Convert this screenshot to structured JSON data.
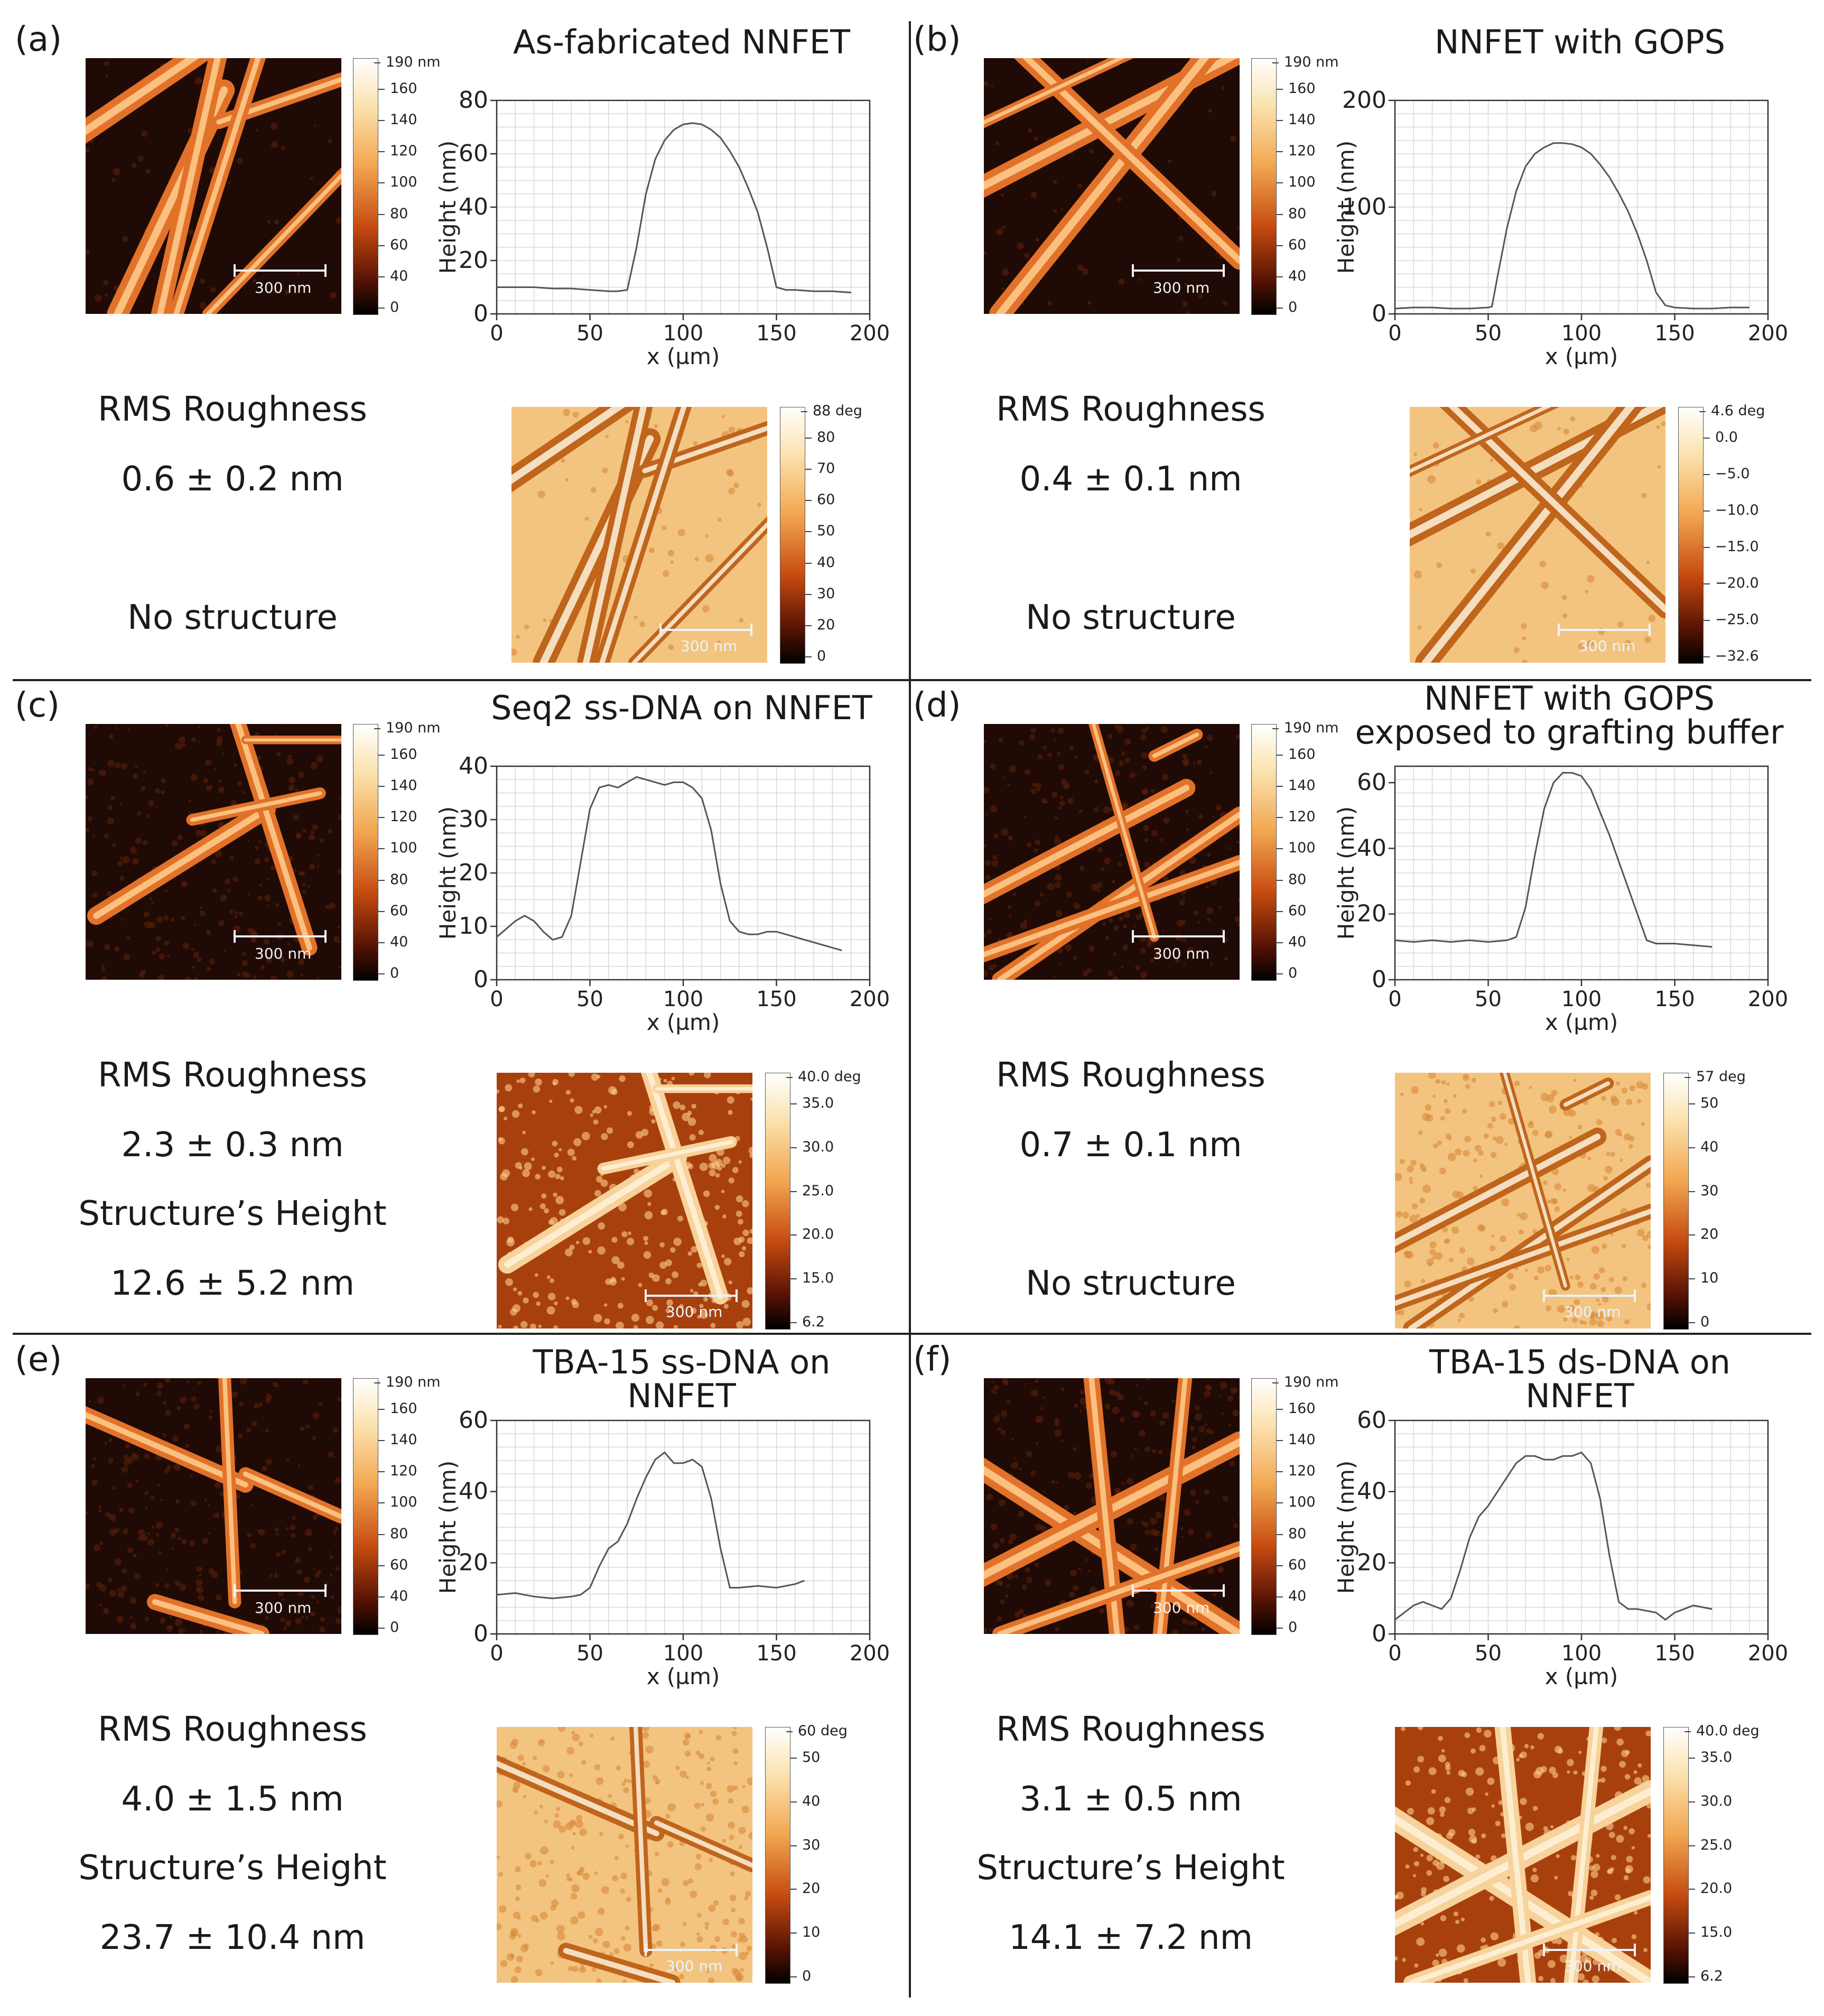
{
  "figure": {
    "panels": [
      {
        "label": "(a)",
        "title": "As-fabricated NNFET",
        "height_colorbar_top": "190 nm",
        "height_colorbar_ticks": [
          "160",
          "140",
          "120",
          "100",
          "80",
          "60",
          "40",
          "0"
        ],
        "scale_bar": "300 nm",
        "phase_colorbar_top": "88 deg",
        "phase_colorbar_ticks": [
          "80",
          "70",
          "60",
          "50",
          "40",
          "30",
          "20",
          "0"
        ],
        "phase_scale_bar": "300 nm",
        "rms_label": "RMS Roughness",
        "rms_value": "0.6 ± 0.2 nm",
        "structure_line1": "No structure",
        "structure_line2": ""
      },
      {
        "label": "(b)",
        "title": "NNFET with GOPS",
        "height_colorbar_top": "190 nm",
        "height_colorbar_ticks": [
          "160",
          "140",
          "120",
          "100",
          "80",
          "60",
          "40",
          "0"
        ],
        "scale_bar": "300 nm",
        "phase_colorbar_top": "4.6 deg",
        "phase_colorbar_ticks": [
          "0.0",
          "−5.0",
          "−10.0",
          "−15.0",
          "−20.0",
          "−25.0",
          "−32.6"
        ],
        "phase_scale_bar": "300 nm",
        "rms_label": "RMS Roughness",
        "rms_value": "0.4 ± 0.1 nm",
        "structure_line1": "No structure",
        "structure_line2": ""
      },
      {
        "label": "(c)",
        "title": "Seq2 ss-DNA on NNFET",
        "height_colorbar_top": "190 nm",
        "height_colorbar_ticks": [
          "160",
          "140",
          "120",
          "100",
          "80",
          "60",
          "40",
          "0"
        ],
        "scale_bar": "300 nm",
        "phase_colorbar_top": "40.0 deg",
        "phase_colorbar_ticks": [
          "35.0",
          "30.0",
          "25.0",
          "20.0",
          "15.0",
          "6.2"
        ],
        "phase_scale_bar": "300 nm",
        "rms_label": "RMS Roughness",
        "rms_value": "2.3 ± 0.3 nm",
        "structure_line1": "Structure’s Height",
        "structure_line2": "12.6 ± 5.2 nm"
      },
      {
        "label": "(d)",
        "title": "NNFET with GOPS\nexposed to grafting buffer",
        "height_colorbar_top": "190 nm",
        "height_colorbar_ticks": [
          "160",
          "140",
          "120",
          "100",
          "80",
          "60",
          "40",
          "0"
        ],
        "scale_bar": "300 nm",
        "phase_colorbar_top": "57 deg",
        "phase_colorbar_ticks": [
          "50",
          "40",
          "30",
          "20",
          "10",
          "0"
        ],
        "phase_scale_bar": "300 nm",
        "rms_label": "RMS Roughness",
        "rms_value": "0.7 ± 0.1 nm",
        "structure_line1": "No structure",
        "structure_line2": ""
      },
      {
        "label": "(e)",
        "title": "TBA-15 ss-DNA on NNFET",
        "height_colorbar_top": "190 nm",
        "height_colorbar_ticks": [
          "160",
          "140",
          "120",
          "100",
          "80",
          "60",
          "40",
          "0"
        ],
        "scale_bar": "300 nm",
        "phase_colorbar_top": "60 deg",
        "phase_colorbar_ticks": [
          "50",
          "40",
          "30",
          "20",
          "10",
          "0"
        ],
        "phase_scale_bar": "300 nm",
        "rms_label": "RMS Roughness",
        "rms_value": "4.0 ± 1.5 nm",
        "structure_line1": "Structure’s Height",
        "structure_line2": "23.7 ± 10.4 nm"
      },
      {
        "label": "(f)",
        "title": "TBA-15 ds-DNA on NNFET",
        "height_colorbar_top": "190 nm",
        "height_colorbar_ticks": [
          "160",
          "140",
          "120",
          "100",
          "80",
          "60",
          "40",
          "0"
        ],
        "scale_bar": "300 nm",
        "phase_colorbar_top": "40.0 deg",
        "phase_colorbar_ticks": [
          "35.0",
          "30.0",
          "25.0",
          "20.0",
          "15.0",
          "6.2"
        ],
        "phase_scale_bar": "300 nm",
        "rms_label": "RMS Roughness",
        "rms_value": "3.1 ± 0.5 nm",
        "structure_line1": "Structure’s Height",
        "structure_line2": "14.1 ± 7.2 nm"
      }
    ]
  },
  "chart_data": [
    {
      "type": "line",
      "panel": "(a)",
      "xlabel": "x (µm)",
      "ylabel": "Height (nm)",
      "xlim": [
        0,
        200
      ],
      "ylim": [
        0,
        80
      ],
      "xticks": [
        0,
        50,
        100,
        150,
        200
      ],
      "yticks": [
        0,
        20,
        40,
        60,
        80
      ],
      "grid": true,
      "x": [
        0,
        10,
        20,
        30,
        40,
        50,
        60,
        65,
        70,
        75,
        80,
        85,
        90,
        95,
        100,
        105,
        110,
        115,
        120,
        125,
        130,
        135,
        140,
        145,
        150,
        155,
        160,
        170,
        180,
        190
      ],
      "y": [
        10,
        10,
        10,
        9.5,
        9.5,
        9,
        8.5,
        8.5,
        9,
        25,
        45,
        58,
        65,
        69,
        71,
        71.5,
        71,
        69,
        66,
        61,
        55,
        47,
        38,
        25,
        10,
        9,
        9,
        8.5,
        8.5,
        8
      ]
    },
    {
      "type": "line",
      "panel": "(b)",
      "xlabel": "x (µm)",
      "ylabel": "Height (nm)",
      "xlim": [
        0,
        200
      ],
      "ylim": [
        0,
        200
      ],
      "xticks": [
        0,
        50,
        100,
        150,
        200
      ],
      "yticks": [
        0,
        100,
        200
      ],
      "grid": true,
      "x": [
        0,
        10,
        20,
        30,
        40,
        50,
        52,
        55,
        60,
        65,
        70,
        75,
        80,
        85,
        90,
        95,
        100,
        105,
        110,
        115,
        120,
        125,
        130,
        135,
        140,
        145,
        150,
        160,
        170,
        180,
        190
      ],
      "y": [
        5,
        6,
        6,
        5,
        5,
        6,
        7,
        35,
        80,
        115,
        138,
        150,
        156,
        160,
        160,
        159,
        156,
        150,
        140,
        128,
        113,
        96,
        75,
        50,
        20,
        8,
        6,
        5,
        5,
        6,
        6
      ]
    },
    {
      "type": "line",
      "panel": "(c)",
      "xlabel": "x (µm)",
      "ylabel": "Height (nm)",
      "xlim": [
        0,
        200
      ],
      "ylim": [
        0,
        40
      ],
      "xticks": [
        0,
        50,
        100,
        150,
        200
      ],
      "yticks": [
        0,
        10,
        20,
        30,
        40
      ],
      "grid": true,
      "x": [
        0,
        5,
        10,
        15,
        20,
        25,
        30,
        35,
        40,
        45,
        50,
        55,
        60,
        65,
        70,
        75,
        80,
        85,
        90,
        95,
        100,
        105,
        110,
        115,
        120,
        125,
        130,
        135,
        140,
        145,
        150,
        155,
        160,
        165,
        170,
        175,
        180,
        185
      ],
      "y": [
        8,
        9.5,
        11,
        12,
        11,
        9,
        7.5,
        8,
        12,
        22,
        32,
        36,
        36.5,
        36,
        37,
        38,
        37.5,
        37,
        36.5,
        37,
        37,
        36,
        34,
        28,
        18,
        11,
        9,
        8.5,
        8.5,
        9,
        9,
        8.5,
        8,
        7.5,
        7,
        6.5,
        6,
        5.5
      ]
    },
    {
      "type": "line",
      "panel": "(d)",
      "xlabel": "x (µm)",
      "ylabel": "Height (nm)",
      "xlim": [
        0,
        200
      ],
      "ylim": [
        0,
        65
      ],
      "xticks": [
        0,
        50,
        100,
        150,
        200
      ],
      "yticks": [
        0,
        20,
        40,
        60
      ],
      "grid": true,
      "x": [
        0,
        10,
        20,
        30,
        40,
        50,
        60,
        65,
        70,
        75,
        80,
        85,
        90,
        95,
        100,
        105,
        110,
        115,
        120,
        125,
        130,
        135,
        140,
        150,
        160,
        170
      ],
      "y": [
        12,
        11.5,
        12,
        11.5,
        12,
        11.5,
        12,
        13,
        22,
        38,
        52,
        60,
        63,
        63,
        62,
        58,
        51,
        44,
        36,
        28,
        20,
        12,
        11,
        11,
        10.5,
        10
      ]
    },
    {
      "type": "line",
      "panel": "(e)",
      "xlabel": "x (µm)",
      "ylabel": "Height (nm)",
      "xlim": [
        0,
        200
      ],
      "ylim": [
        0,
        60
      ],
      "xticks": [
        0,
        50,
        100,
        150,
        200
      ],
      "yticks": [
        0,
        20,
        40,
        60
      ],
      "grid": true,
      "x": [
        0,
        10,
        20,
        30,
        40,
        45,
        50,
        55,
        60,
        65,
        70,
        75,
        80,
        85,
        90,
        95,
        100,
        105,
        110,
        115,
        120,
        125,
        130,
        140,
        150,
        160,
        165
      ],
      "y": [
        11,
        11.5,
        10.5,
        10,
        10.5,
        11,
        13,
        19,
        24,
        26,
        31,
        38,
        44,
        49,
        51,
        48,
        48,
        49,
        47,
        38,
        24,
        13,
        13,
        13.5,
        13,
        14,
        15
      ]
    },
    {
      "type": "line",
      "panel": "(f)",
      "xlabel": "x (µm)",
      "ylabel": "Height (nm)",
      "xlim": [
        0,
        200
      ],
      "ylim": [
        0,
        60
      ],
      "xticks": [
        0,
        50,
        100,
        150,
        200
      ],
      "yticks": [
        0,
        20,
        40,
        60
      ],
      "grid": true,
      "x": [
        0,
        5,
        10,
        15,
        20,
        25,
        30,
        35,
        40,
        45,
        50,
        55,
        60,
        65,
        70,
        75,
        80,
        85,
        90,
        95,
        100,
        105,
        110,
        115,
        120,
        125,
        130,
        140,
        145,
        150,
        160,
        170
      ],
      "y": [
        4,
        6,
        8,
        9,
        8,
        7,
        10,
        18,
        27,
        33,
        36,
        40,
        44,
        48,
        50,
        50,
        49,
        49,
        50,
        50,
        51,
        48,
        38,
        22,
        9,
        7,
        7,
        6,
        4,
        6,
        8,
        7
      ]
    }
  ]
}
